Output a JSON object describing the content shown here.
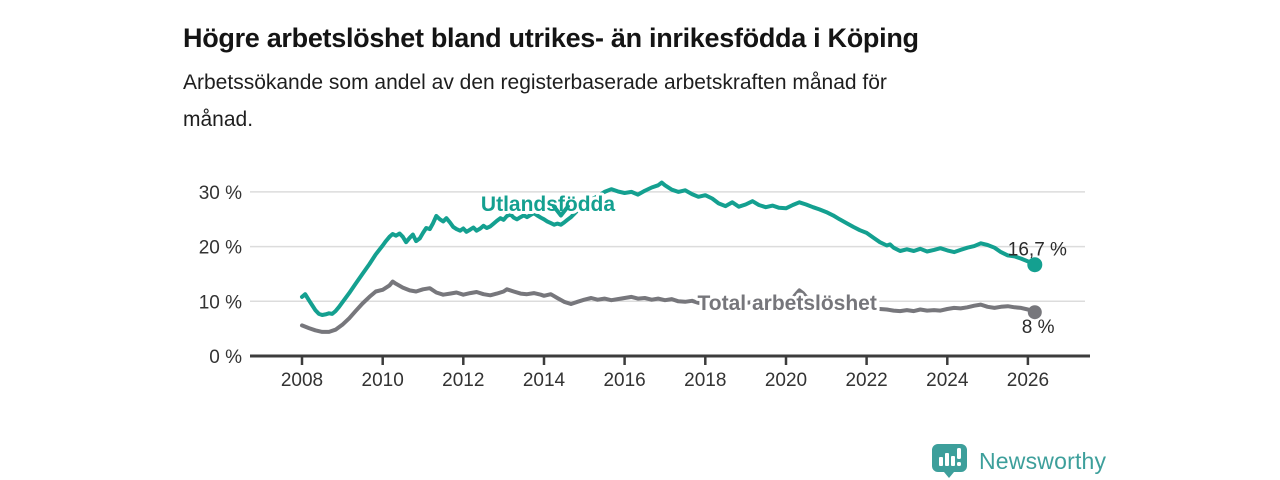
{
  "header": {
    "title": "Högre arbetslöshet bland utrikes- än inrikesfödda i Köping",
    "subtitle_line1": "Arbetssökande som andel av den registerbaserade arbetskraften månad för",
    "subtitle_line2": "månad."
  },
  "colors": {
    "accent_teal": "#14A090",
    "line_gray": "#77777C",
    "label_gray": "#76767B",
    "value_text": "#2B2B2B",
    "axis": "#3C3C3C",
    "tick_text": "#333333",
    "grid": "#DCDCDC",
    "logo_teal": "#3D9F9B"
  },
  "chart_data": {
    "type": "line",
    "title": "Högre arbetslöshet bland utrikes- än inrikesfödda i Köping",
    "subtitle": "Arbetssökande som andel av den registerbaserade arbetskraften månad för månad.",
    "x_range": [
      2008,
      2026.17
    ],
    "ylim": [
      0,
      33
    ],
    "grid": "horizontal",
    "legend_position": "inline-labels",
    "y_ticks": [
      {
        "value": 0,
        "label": "0 %"
      },
      {
        "value": 10,
        "label": "10 %"
      },
      {
        "value": 20,
        "label": "20 %"
      },
      {
        "value": 30,
        "label": "30 %"
      }
    ],
    "x_ticks": [
      {
        "value": 2008,
        "label": "2008"
      },
      {
        "value": 2010,
        "label": "2010"
      },
      {
        "value": 2012,
        "label": "2012"
      },
      {
        "value": 2014,
        "label": "2014"
      },
      {
        "value": 2016,
        "label": "2016"
      },
      {
        "value": 2018,
        "label": "2018"
      },
      {
        "value": 2020,
        "label": "2020"
      },
      {
        "value": 2022,
        "label": "2022"
      },
      {
        "value": 2024,
        "label": "2024"
      },
      {
        "value": 2026,
        "label": "2026"
      }
    ],
    "series": [
      {
        "id": "total-arbetsloshet",
        "name": "Total arbetslöshet",
        "color": "#77777C",
        "end_value": 8.0,
        "end_label": "8 %",
        "end_label_offset": [
          -13,
          21
        ],
        "dot_radius": 7,
        "points": [
          [
            2008.0,
            5.6
          ],
          [
            2008.17,
            5.1
          ],
          [
            2008.33,
            4.7
          ],
          [
            2008.5,
            4.4
          ],
          [
            2008.67,
            4.4
          ],
          [
            2008.83,
            4.8
          ],
          [
            2009.0,
            5.7
          ],
          [
            2009.17,
            6.9
          ],
          [
            2009.33,
            8.2
          ],
          [
            2009.5,
            9.6
          ],
          [
            2009.67,
            10.8
          ],
          [
            2009.83,
            11.8
          ],
          [
            2010.0,
            12.1
          ],
          [
            2010.17,
            12.9
          ],
          [
            2010.25,
            13.6
          ],
          [
            2010.33,
            13.2
          ],
          [
            2010.5,
            12.5
          ],
          [
            2010.67,
            12.0
          ],
          [
            2010.83,
            11.8
          ],
          [
            2011.0,
            12.2
          ],
          [
            2011.17,
            12.4
          ],
          [
            2011.33,
            11.6
          ],
          [
            2011.5,
            11.2
          ],
          [
            2011.67,
            11.4
          ],
          [
            2011.83,
            11.6
          ],
          [
            2012.0,
            11.2
          ],
          [
            2012.17,
            11.5
          ],
          [
            2012.33,
            11.7
          ],
          [
            2012.5,
            11.3
          ],
          [
            2012.67,
            11.1
          ],
          [
            2012.83,
            11.4
          ],
          [
            2013.0,
            11.8
          ],
          [
            2013.08,
            12.2
          ],
          [
            2013.25,
            11.8
          ],
          [
            2013.42,
            11.4
          ],
          [
            2013.58,
            11.3
          ],
          [
            2013.75,
            11.5
          ],
          [
            2013.92,
            11.2
          ],
          [
            2014.0,
            11.0
          ],
          [
            2014.17,
            11.3
          ],
          [
            2014.33,
            10.6
          ],
          [
            2014.5,
            9.9
          ],
          [
            2014.67,
            9.5
          ],
          [
            2014.83,
            9.9
          ],
          [
            2015.0,
            10.3
          ],
          [
            2015.17,
            10.6
          ],
          [
            2015.33,
            10.3
          ],
          [
            2015.5,
            10.5
          ],
          [
            2015.67,
            10.2
          ],
          [
            2015.83,
            10.4
          ],
          [
            2016.0,
            10.6
          ],
          [
            2016.17,
            10.8
          ],
          [
            2016.33,
            10.5
          ],
          [
            2016.5,
            10.6
          ],
          [
            2016.67,
            10.3
          ],
          [
            2016.83,
            10.5
          ],
          [
            2017.0,
            10.2
          ],
          [
            2017.17,
            10.4
          ],
          [
            2017.33,
            10.0
          ],
          [
            2017.5,
            9.9
          ],
          [
            2017.67,
            10.1
          ],
          [
            2017.83,
            9.7
          ],
          [
            2018.0,
            9.9
          ],
          [
            2018.25,
            10.1
          ],
          [
            2018.5,
            9.8
          ],
          [
            2018.75,
            10.0
          ],
          [
            2019.0,
            9.7
          ],
          [
            2019.25,
            9.9
          ],
          [
            2019.5,
            10.1
          ],
          [
            2019.75,
            9.9
          ],
          [
            2020.0,
            10.2
          ],
          [
            2020.17,
            10.6
          ],
          [
            2020.25,
            11.3
          ],
          [
            2020.33,
            12.0
          ],
          [
            2020.42,
            11.5
          ],
          [
            2020.5,
            10.8
          ],
          [
            2020.67,
            10.3
          ],
          [
            2021.0,
            9.8
          ],
          [
            2021.33,
            9.4
          ],
          [
            2021.67,
            9.0
          ],
          [
            2022.0,
            8.8
          ],
          [
            2022.33,
            8.6
          ],
          [
            2022.5,
            8.5
          ],
          [
            2022.67,
            8.3
          ],
          [
            2022.83,
            8.2
          ],
          [
            2023.0,
            8.4
          ],
          [
            2023.17,
            8.2
          ],
          [
            2023.33,
            8.5
          ],
          [
            2023.5,
            8.3
          ],
          [
            2023.67,
            8.4
          ],
          [
            2023.83,
            8.3
          ],
          [
            2024.0,
            8.6
          ],
          [
            2024.17,
            8.8
          ],
          [
            2024.33,
            8.7
          ],
          [
            2024.5,
            8.9
          ],
          [
            2024.67,
            9.2
          ],
          [
            2024.83,
            9.4
          ],
          [
            2025.0,
            9.0
          ],
          [
            2025.17,
            8.8
          ],
          [
            2025.33,
            9.0
          ],
          [
            2025.5,
            9.1
          ],
          [
            2025.67,
            8.9
          ],
          [
            2025.83,
            8.8
          ],
          [
            2026.0,
            8.5
          ],
          [
            2026.17,
            8.0
          ]
        ]
      },
      {
        "id": "utlandsfodda",
        "name": "Utlandsfödda",
        "color": "#14A090",
        "end_value": 16.7,
        "end_label": "16,7 %",
        "end_label_offset": [
          -27,
          -9
        ],
        "dot_radius": 7.5,
        "points": [
          [
            2008.0,
            10.8
          ],
          [
            2008.08,
            11.3
          ],
          [
            2008.17,
            10.2
          ],
          [
            2008.25,
            9.3
          ],
          [
            2008.33,
            8.4
          ],
          [
            2008.42,
            7.7
          ],
          [
            2008.5,
            7.5
          ],
          [
            2008.58,
            7.6
          ],
          [
            2008.67,
            7.8
          ],
          [
            2008.75,
            7.7
          ],
          [
            2008.83,
            8.2
          ],
          [
            2008.92,
            9.0
          ],
          [
            2009.0,
            9.8
          ],
          [
            2009.17,
            11.5
          ],
          [
            2009.33,
            13.2
          ],
          [
            2009.5,
            15.0
          ],
          [
            2009.67,
            16.8
          ],
          [
            2009.83,
            18.6
          ],
          [
            2010.0,
            20.2
          ],
          [
            2010.08,
            21.0
          ],
          [
            2010.17,
            21.8
          ],
          [
            2010.25,
            22.3
          ],
          [
            2010.33,
            22.0
          ],
          [
            2010.42,
            22.4
          ],
          [
            2010.5,
            21.8
          ],
          [
            2010.58,
            20.8
          ],
          [
            2010.67,
            21.6
          ],
          [
            2010.75,
            22.2
          ],
          [
            2010.83,
            21.0
          ],
          [
            2010.92,
            21.5
          ],
          [
            2011.0,
            22.5
          ],
          [
            2011.08,
            23.4
          ],
          [
            2011.17,
            23.2
          ],
          [
            2011.25,
            24.3
          ],
          [
            2011.33,
            25.6
          ],
          [
            2011.42,
            25.0
          ],
          [
            2011.5,
            24.6
          ],
          [
            2011.58,
            25.2
          ],
          [
            2011.67,
            24.4
          ],
          [
            2011.75,
            23.6
          ],
          [
            2011.83,
            23.2
          ],
          [
            2011.92,
            22.9
          ],
          [
            2012.0,
            23.3
          ],
          [
            2012.08,
            22.7
          ],
          [
            2012.17,
            23.1
          ],
          [
            2012.25,
            23.5
          ],
          [
            2012.33,
            22.9
          ],
          [
            2012.42,
            23.3
          ],
          [
            2012.5,
            23.8
          ],
          [
            2012.58,
            23.4
          ],
          [
            2012.67,
            23.7
          ],
          [
            2012.75,
            24.2
          ],
          [
            2012.83,
            24.7
          ],
          [
            2012.92,
            25.2
          ],
          [
            2013.0,
            24.9
          ],
          [
            2013.08,
            25.6
          ],
          [
            2013.17,
            25.9
          ],
          [
            2013.25,
            25.3
          ],
          [
            2013.33,
            25.0
          ],
          [
            2013.42,
            25.4
          ],
          [
            2013.5,
            25.7
          ],
          [
            2013.58,
            25.4
          ],
          [
            2013.67,
            25.8
          ],
          [
            2013.75,
            26.1
          ],
          [
            2013.83,
            25.7
          ],
          [
            2013.92,
            25.3
          ],
          [
            2014.0,
            25.0
          ],
          [
            2014.08,
            24.6
          ],
          [
            2014.17,
            24.3
          ],
          [
            2014.25,
            24.0
          ],
          [
            2014.33,
            24.2
          ],
          [
            2014.42,
            24.0
          ],
          [
            2014.5,
            24.4
          ],
          [
            2014.58,
            24.9
          ],
          [
            2014.67,
            25.4
          ],
          [
            2014.75,
            26.0
          ],
          [
            2014.83,
            26.6
          ],
          [
            2014.92,
            27.2
          ],
          [
            2015.0,
            27.8
          ],
          [
            2015.17,
            28.6
          ],
          [
            2015.33,
            29.2
          ],
          [
            2015.5,
            30.0
          ],
          [
            2015.67,
            30.5
          ],
          [
            2015.83,
            30.1
          ],
          [
            2016.0,
            29.8
          ],
          [
            2016.17,
            30.0
          ],
          [
            2016.33,
            29.5
          ],
          [
            2016.5,
            30.2
          ],
          [
            2016.67,
            30.8
          ],
          [
            2016.83,
            31.2
          ],
          [
            2016.92,
            31.7
          ],
          [
            2017.0,
            31.2
          ],
          [
            2017.17,
            30.4
          ],
          [
            2017.33,
            30.0
          ],
          [
            2017.5,
            30.3
          ],
          [
            2017.67,
            29.6
          ],
          [
            2017.83,
            29.1
          ],
          [
            2018.0,
            29.4
          ],
          [
            2018.17,
            28.8
          ],
          [
            2018.33,
            27.9
          ],
          [
            2018.5,
            27.4
          ],
          [
            2018.67,
            28.1
          ],
          [
            2018.83,
            27.3
          ],
          [
            2019.0,
            27.7
          ],
          [
            2019.17,
            28.3
          ],
          [
            2019.33,
            27.6
          ],
          [
            2019.5,
            27.2
          ],
          [
            2019.67,
            27.5
          ],
          [
            2019.83,
            27.1
          ],
          [
            2020.0,
            27.0
          ],
          [
            2020.17,
            27.6
          ],
          [
            2020.33,
            28.1
          ],
          [
            2020.5,
            27.7
          ],
          [
            2020.67,
            27.2
          ],
          [
            2020.83,
            26.8
          ],
          [
            2021.0,
            26.3
          ],
          [
            2021.17,
            25.7
          ],
          [
            2021.33,
            25.0
          ],
          [
            2021.5,
            24.3
          ],
          [
            2021.67,
            23.6
          ],
          [
            2021.83,
            23.0
          ],
          [
            2022.0,
            22.5
          ],
          [
            2022.17,
            21.6
          ],
          [
            2022.33,
            20.8
          ],
          [
            2022.5,
            20.2
          ],
          [
            2022.58,
            20.4
          ],
          [
            2022.67,
            19.8
          ],
          [
            2022.83,
            19.2
          ],
          [
            2023.0,
            19.5
          ],
          [
            2023.17,
            19.2
          ],
          [
            2023.33,
            19.6
          ],
          [
            2023.5,
            19.1
          ],
          [
            2023.67,
            19.4
          ],
          [
            2023.83,
            19.7
          ],
          [
            2024.0,
            19.3
          ],
          [
            2024.17,
            19.0
          ],
          [
            2024.33,
            19.4
          ],
          [
            2024.5,
            19.8
          ],
          [
            2024.67,
            20.1
          ],
          [
            2024.83,
            20.6
          ],
          [
            2025.0,
            20.3
          ],
          [
            2025.17,
            19.8
          ],
          [
            2025.33,
            19.0
          ],
          [
            2025.5,
            18.4
          ],
          [
            2025.67,
            18.2
          ],
          [
            2025.83,
            17.8
          ],
          [
            2026.0,
            17.3
          ],
          [
            2026.17,
            16.7
          ]
        ]
      }
    ],
    "annotations": [
      {
        "id": "label-utlandsfodda",
        "text": "Utlandsfödda",
        "x": 2014.1,
        "y": 28.0,
        "color": "#14A090",
        "marker": "chevron-down",
        "marker_x": 2014.42,
        "marker_y": 26.6
      },
      {
        "id": "label-total-arbetsloshet",
        "text": "Total arbetslöshet",
        "x": 2020.03,
        "y": 9.85,
        "color": "#76767B",
        "marker": "none"
      }
    ]
  },
  "footer": {
    "brand": "Newsworthy",
    "logo_icon": "bar-chart-speech-bubble"
  }
}
